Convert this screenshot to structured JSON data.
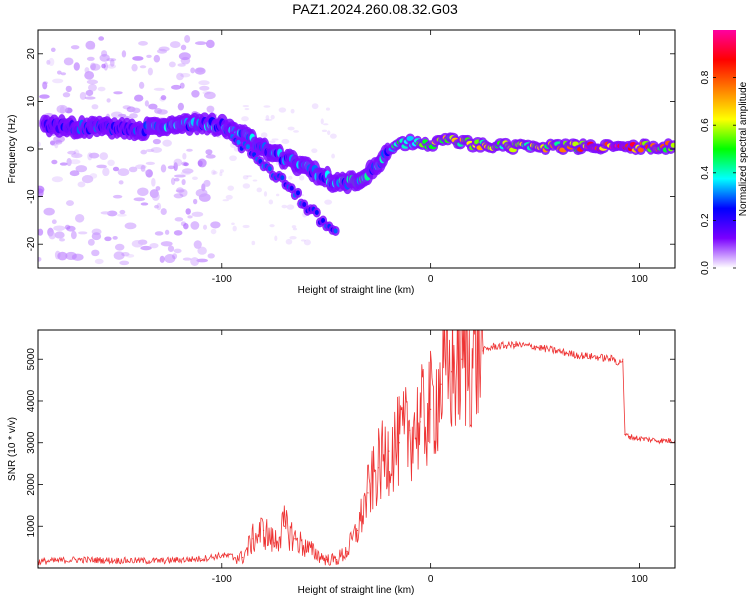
{
  "title": "PAZ1.2024.260.08.32.G03",
  "chart_data": [
    {
      "type": "heatmap",
      "xlabel": "Height of straight line (km)",
      "ylabel": "Frequency (Hz)",
      "xlim": [
        -188,
        117
      ],
      "ylim": [
        -25,
        25
      ],
      "xticks": [
        -100,
        0,
        100
      ],
      "yticks": [
        20,
        10,
        0,
        -10,
        -20
      ],
      "colorbar": {
        "label": "Normalized spectral amplitude",
        "range": [
          0,
          1
        ],
        "ticks": [
          "0.0",
          "0.2",
          "0.4",
          "0.6",
          "0.8"
        ],
        "colormap": [
          "#ffffff",
          "#7a00ff",
          "#0000ff",
          "#00ffff",
          "#00ff00",
          "#ffff00",
          "#ff8000",
          "#ff0000",
          "#ff00a0"
        ]
      },
      "ridge": {
        "x": [
          -185,
          -170,
          -155,
          -140,
          -125,
          -110,
          -100,
          -90,
          -80,
          -70,
          -60,
          -50,
          -45,
          -40,
          -35,
          -30,
          -25,
          -20,
          -15,
          -10,
          -5,
          0,
          5,
          10,
          20,
          40,
          60,
          80,
          100,
          117
        ],
        "freq": [
          5,
          4.5,
          4.5,
          4,
          5,
          5.5,
          5,
          3,
          0,
          -2,
          -4,
          -6,
          -7,
          -7,
          -6.5,
          -5,
          -3,
          -1,
          1,
          1.5,
          1,
          1,
          1.5,
          2,
          1,
          0.5,
          0.5,
          0.5,
          0.5,
          0.5
        ],
        "amplitude": [
          0.2,
          0.25,
          0.25,
          0.25,
          0.3,
          0.3,
          0.3,
          0.3,
          0.3,
          0.3,
          0.3,
          0.3,
          0.3,
          0.35,
          0.35,
          0.35,
          0.3,
          0.35,
          0.4,
          0.45,
          0.5,
          0.6,
          0.6,
          0.55,
          0.55,
          0.55,
          0.6,
          0.8,
          0.85,
          0.55
        ]
      },
      "secondary_branch": {
        "x": [
          -95,
          -85,
          -75,
          -65,
          -60,
          -55,
          -50,
          -45
        ],
        "freq": [
          2,
          -1,
          -5,
          -9,
          -12,
          -14,
          -16,
          -17
        ]
      }
    },
    {
      "type": "line",
      "xlabel": "Height of straight line (km)",
      "ylabel": "SNR (10 * v/v)",
      "xlim": [
        -188,
        117
      ],
      "ylim": [
        0,
        5700
      ],
      "xticks": [
        -100,
        0,
        100
      ],
      "yticks": [
        1000,
        2000,
        3000,
        4000,
        5000
      ],
      "color": "#ee3333",
      "series": [
        {
          "x": [
            -188,
            -170,
            -150,
            -130,
            -110,
            -100,
            -90,
            -85,
            -80,
            -75,
            -70,
            -65,
            -60,
            -55,
            -50,
            -45,
            -40,
            -35,
            -30,
            -25,
            -20,
            -15,
            -10,
            -5,
            0,
            5,
            10,
            15,
            20,
            25,
            30,
            40,
            50,
            60,
            70,
            80,
            88,
            90,
            92,
            93,
            95,
            100,
            110,
            117
          ],
          "values": [
            150,
            200,
            180,
            170,
            220,
            300,
            250,
            700,
            900,
            600,
            1000,
            700,
            500,
            350,
            200,
            200,
            400,
            900,
            1800,
            2400,
            2800,
            3000,
            3300,
            3500,
            3800,
            4400,
            4700,
            5000,
            5100,
            5200,
            5300,
            5350,
            5300,
            5200,
            5100,
            5050,
            5000,
            4900,
            5000,
            3200,
            3150,
            3100,
            3050,
            3050
          ]
        }
      ]
    }
  ]
}
